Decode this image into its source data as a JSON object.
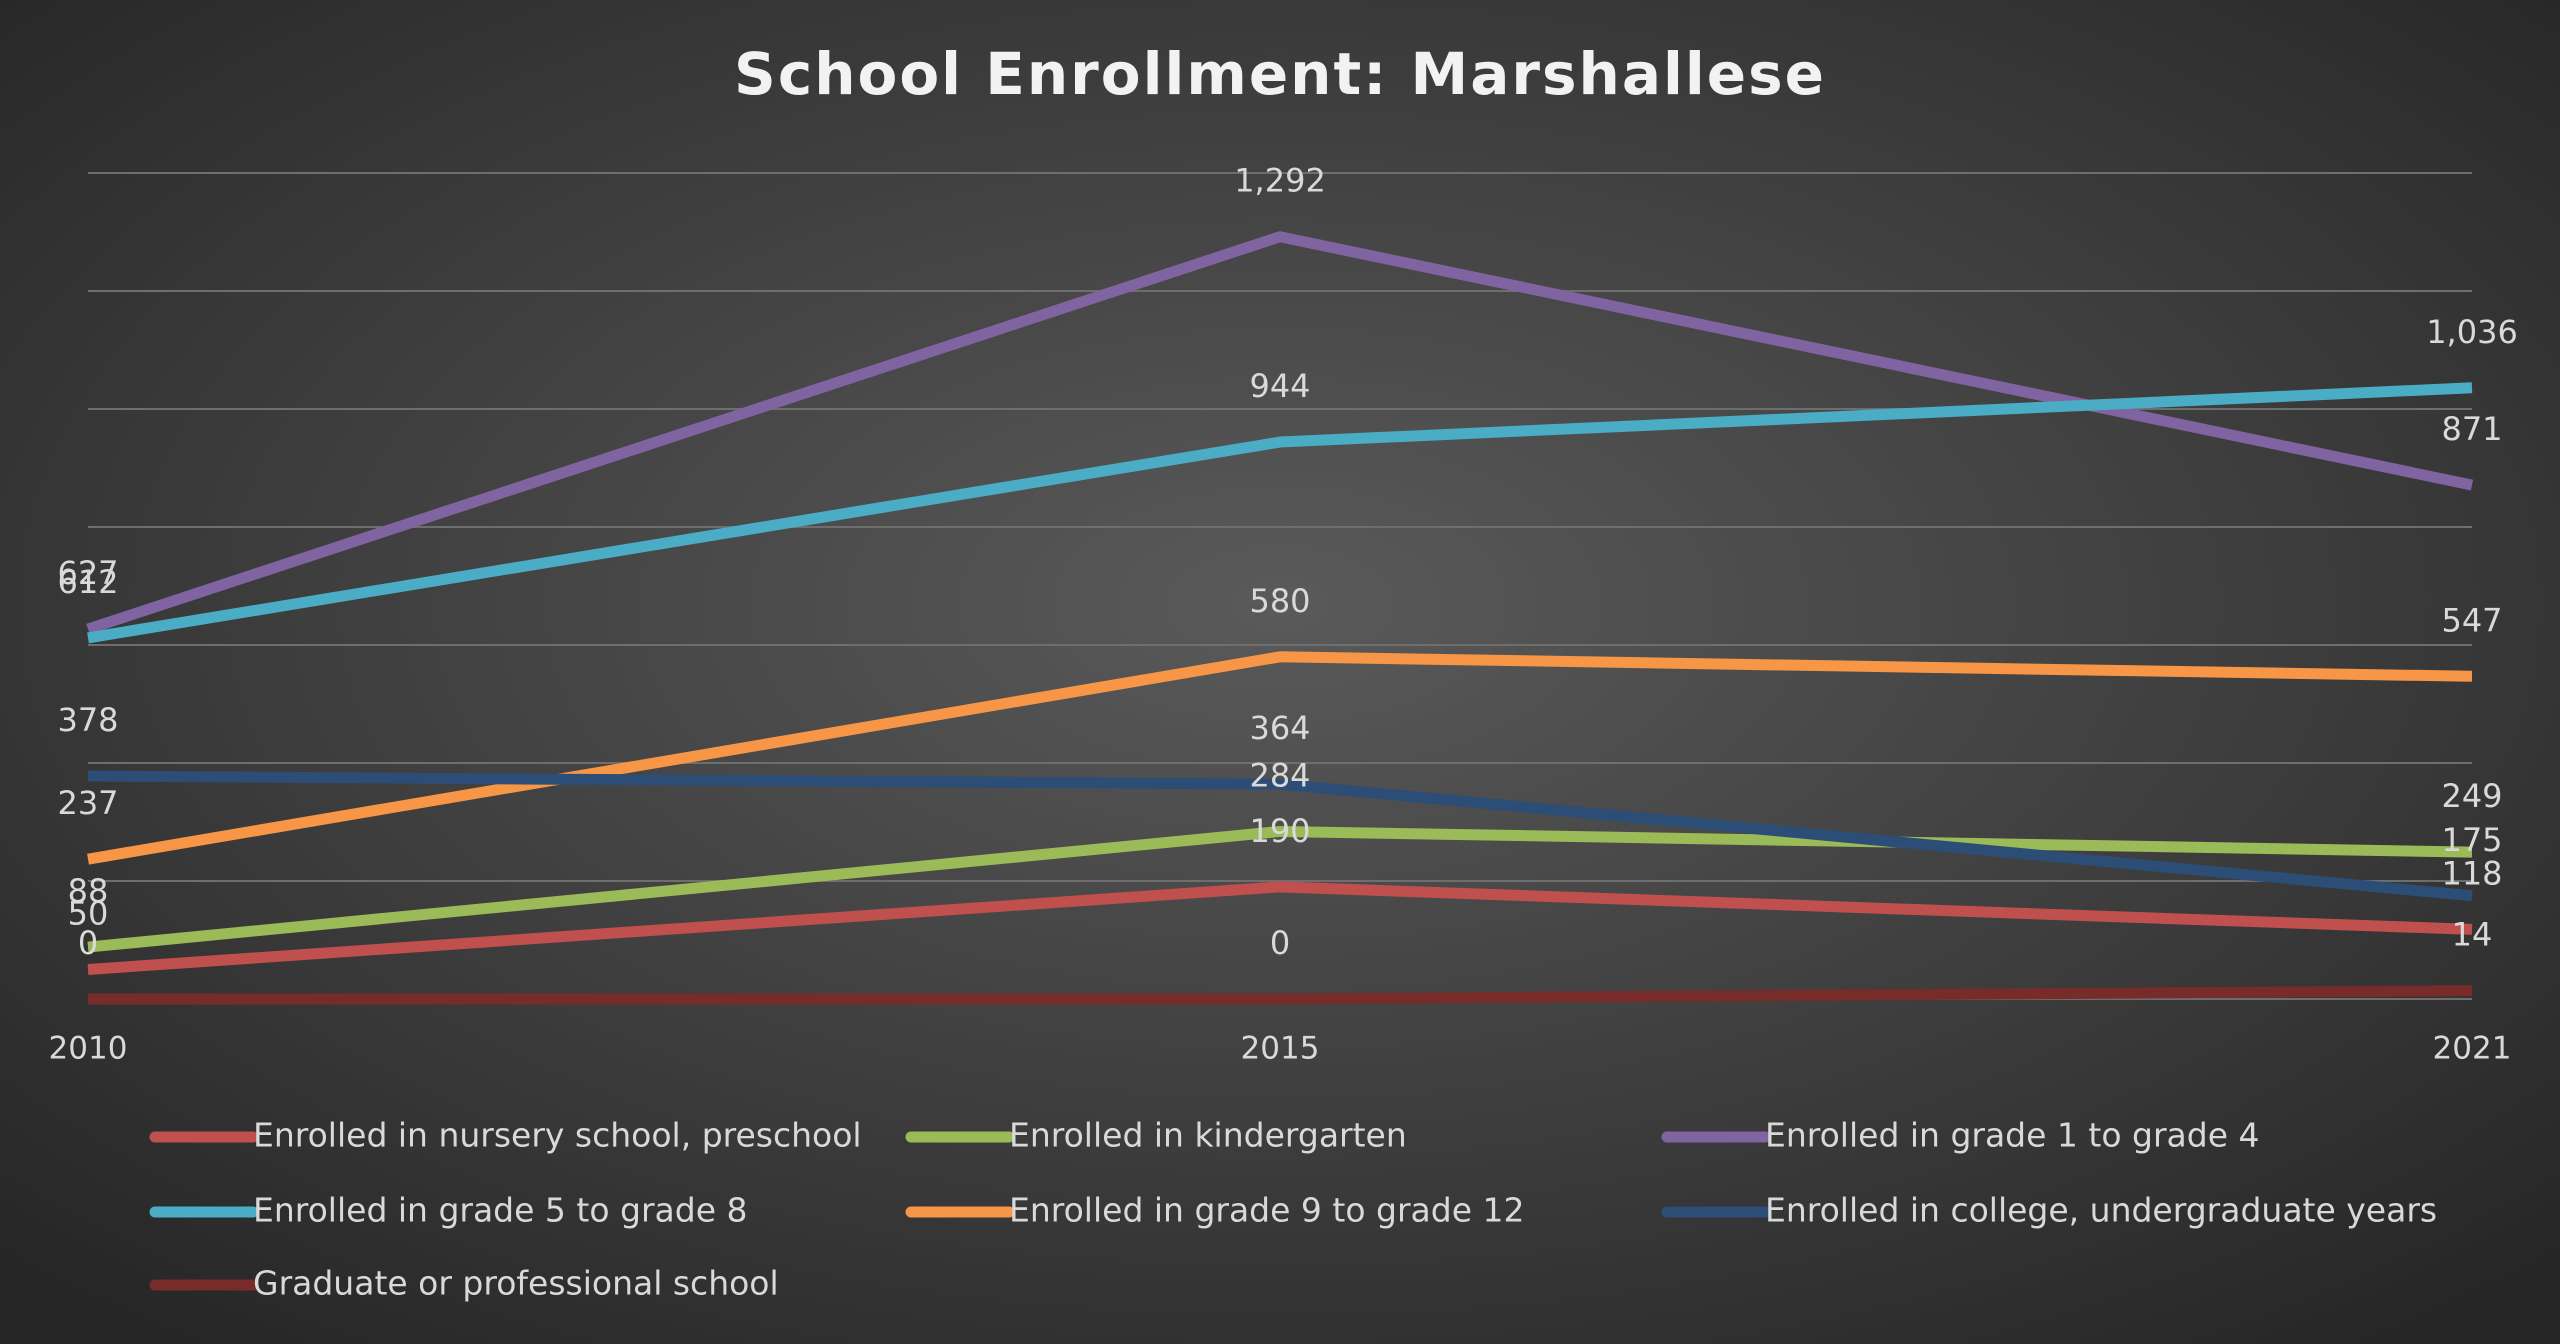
{
  "chart_data": {
    "type": "line",
    "title": "School Enrollment: Marshallese",
    "categories": [
      "2010",
      "2015",
      "2021"
    ],
    "ylim": [
      0,
      1400
    ],
    "yticks": [
      0,
      200,
      400,
      600,
      800,
      1000,
      1200,
      1400
    ],
    "grid": true,
    "series": [
      {
        "name": "Enrolled in nursery school, preschool",
        "color": "#c0504d",
        "values": [
          50,
          190,
          118
        ],
        "value_labels": [
          "50",
          "190",
          "118"
        ]
      },
      {
        "name": "Enrolled in kindergarten",
        "color": "#9bbb59",
        "values": [
          88,
          284,
          249
        ],
        "value_labels": [
          "88",
          "284",
          "249"
        ]
      },
      {
        "name": "Enrolled in grade 1 to grade 4",
        "color": "#8064a2",
        "values": [
          627,
          1292,
          871
        ],
        "value_labels": [
          "627",
          "1,292",
          "871"
        ]
      },
      {
        "name": "Enrolled in grade 5 to grade 8",
        "color": "#4bacc6",
        "values": [
          612,
          944,
          1036
        ],
        "value_labels": [
          "612",
          "944",
          "1,036"
        ]
      },
      {
        "name": "Enrolled in grade 9 to grade 12",
        "color": "#f79646",
        "values": [
          237,
          580,
          547
        ],
        "value_labels": [
          "237",
          "580",
          "547"
        ]
      },
      {
        "name": "Enrolled in college, undergraduate years",
        "color": "#2c4d75",
        "values": [
          378,
          364,
          175
        ],
        "value_labels": [
          "378",
          "364",
          "175"
        ]
      },
      {
        "name": "Graduate or professional school",
        "color": "#772c2a",
        "values": [
          0,
          0,
          14
        ],
        "value_labels": [
          "0",
          "0",
          "14"
        ]
      }
    ]
  }
}
